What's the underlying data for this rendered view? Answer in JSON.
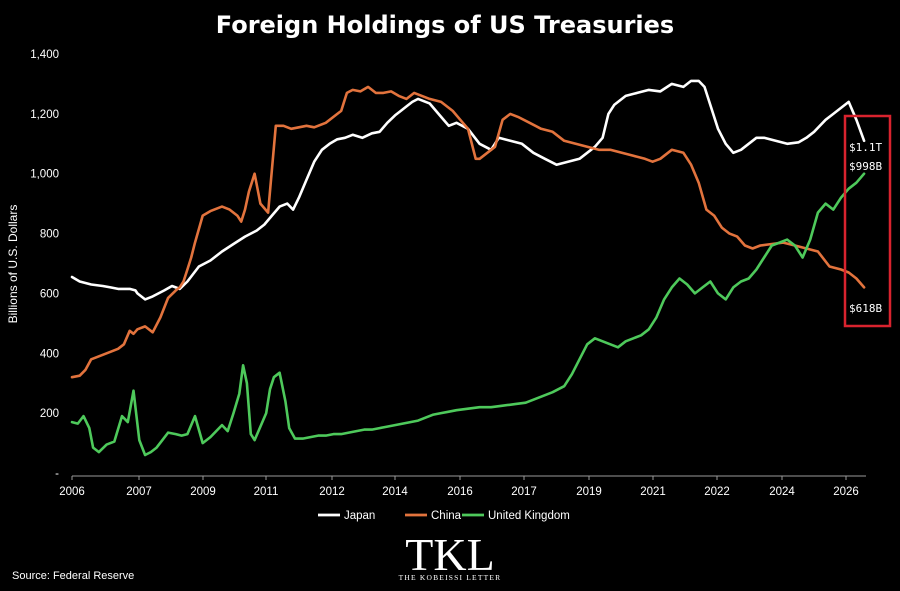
{
  "chart_data": {
    "type": "line",
    "title": "Foreign Holdings of US Treasuries",
    "ylabel": "Billions of U.S. Dollars",
    "xlabel": "",
    "ylim": [
      -10,
      1400
    ],
    "xlim": [
      2006.0,
      2026.65
    ],
    "yticks": [
      1400,
      1200,
      1000,
      800,
      600,
      400,
      200,
      "-"
    ],
    "xticks": [
      "2006",
      "2007",
      "2009",
      "2011",
      "2012",
      "2014",
      "2016",
      "2017",
      "2019",
      "2021",
      "2022",
      "2024",
      "2026"
    ],
    "grid": false,
    "legend_position": "bottom",
    "series": [
      {
        "name": "Japan",
        "color": "#ffffff",
        "x": [
          2006.0,
          2006.2,
          2006.5,
          2006.8,
          2007.0,
          2007.2,
          2007.5,
          2007.65,
          2007.7,
          2007.9,
          2008.1,
          2008.4,
          2008.6,
          2008.8,
          2009.0,
          2009.3,
          2009.6,
          2009.9,
          2010.2,
          2010.5,
          2010.8,
          2011.0,
          2011.2,
          2011.4,
          2011.6,
          2011.75,
          2011.9,
          2012.1,
          2012.3,
          2012.5,
          2012.7,
          2012.9,
          2013.1,
          2013.3,
          2013.55,
          2013.8,
          2014.0,
          2014.2,
          2014.4,
          2014.55,
          2014.7,
          2014.85,
          2015.0,
          2015.3,
          2015.6,
          2015.8,
          2016.0,
          2016.3,
          2016.6,
          2016.9,
          2017.1,
          2017.4,
          2017.7,
          2018.0,
          2018.3,
          2018.6,
          2018.9,
          2019.2,
          2019.4,
          2019.6,
          2019.8,
          2019.95,
          2020.1,
          2020.4,
          2020.7,
          2021.0,
          2021.3,
          2021.6,
          2021.9,
          2022.1,
          2022.3,
          2022.45,
          2022.6,
          2022.8,
          2023.0,
          2023.2,
          2023.4,
          2023.6,
          2023.8,
          2024.0,
          2024.3,
          2024.6,
          2024.9,
          2025.1,
          2025.3,
          2025.6,
          2025.8,
          2026.0,
          2026.2,
          2026.4,
          2026.6
        ],
        "values": [
          655,
          640,
          630,
          625,
          620,
          615,
          615,
          610,
          600,
          580,
          590,
          610,
          625,
          615,
          640,
          690,
          710,
          740,
          765,
          790,
          810,
          830,
          860,
          890,
          900,
          880,
          920,
          980,
          1040,
          1080,
          1100,
          1115,
          1120,
          1130,
          1120,
          1135,
          1140,
          1170,
          1195,
          1210,
          1225,
          1240,
          1250,
          1235,
          1190,
          1160,
          1170,
          1150,
          1100,
          1080,
          1120,
          1110,
          1100,
          1070,
          1050,
          1030,
          1040,
          1050,
          1070,
          1090,
          1120,
          1200,
          1230,
          1260,
          1270,
          1280,
          1275,
          1300,
          1290,
          1310,
          1310,
          1290,
          1230,
          1150,
          1100,
          1070,
          1080,
          1100,
          1120,
          1120,
          1110,
          1100,
          1105,
          1120,
          1140,
          1180,
          1200,
          1220,
          1240,
          1180,
          1110
        ]
      },
      {
        "name": "China",
        "color": "#e2733d",
        "x": [
          2006.0,
          2006.2,
          2006.35,
          2006.5,
          2006.8,
          2007.0,
          2007.2,
          2007.35,
          2007.5,
          2007.55,
          2007.6,
          2007.7,
          2007.9,
          2008.1,
          2008.3,
          2008.5,
          2008.7,
          2008.8,
          2008.9,
          2009.0,
          2009.1,
          2009.2,
          2009.4,
          2009.6,
          2009.9,
          2010.1,
          2010.3,
          2010.4,
          2010.5,
          2010.6,
          2010.75,
          2010.9,
          2011.1,
          2011.3,
          2011.5,
          2011.7,
          2011.9,
          2012.1,
          2012.3,
          2012.6,
          2012.9,
          2013.0,
          2013.15,
          2013.3,
          2013.5,
          2013.7,
          2013.9,
          2014.1,
          2014.3,
          2014.5,
          2014.7,
          2014.9,
          2015.1,
          2015.3,
          2015.6,
          2015.9,
          2016.1,
          2016.3,
          2016.5,
          2016.6,
          2016.8,
          2017.0,
          2017.2,
          2017.4,
          2017.6,
          2017.9,
          2018.2,
          2018.5,
          2018.8,
          2019.1,
          2019.4,
          2019.7,
          2020.0,
          2020.3,
          2020.6,
          2020.9,
          2021.1,
          2021.3,
          2021.6,
          2021.9,
          2022.1,
          2022.3,
          2022.5,
          2022.7,
          2022.9,
          2023.1,
          2023.3,
          2023.5,
          2023.7,
          2023.9,
          2024.2,
          2024.5,
          2024.8,
          2025.1,
          2025.4,
          2025.7,
          2026.0,
          2026.2,
          2026.4,
          2026.6
        ],
        "values": [
          320,
          325,
          345,
          380,
          395,
          405,
          415,
          430,
          475,
          470,
          465,
          480,
          490,
          470,
          520,
          585,
          610,
          620,
          640,
          680,
          720,
          770,
          860,
          875,
          890,
          880,
          860,
          840,
          880,
          940,
          1000,
          900,
          870,
          1160,
          1160,
          1150,
          1155,
          1160,
          1155,
          1170,
          1200,
          1210,
          1270,
          1280,
          1275,
          1290,
          1270,
          1270,
          1275,
          1260,
          1250,
          1270,
          1260,
          1250,
          1240,
          1210,
          1180,
          1150,
          1050,
          1050,
          1070,
          1090,
          1180,
          1200,
          1190,
          1170,
          1150,
          1140,
          1110,
          1100,
          1090,
          1080,
          1080,
          1070,
          1060,
          1050,
          1040,
          1050,
          1080,
          1070,
          1030,
          970,
          880,
          860,
          820,
          800,
          790,
          760,
          750,
          760,
          765,
          770,
          760,
          750,
          740,
          690,
          680,
          670,
          650,
          620
        ]
      },
      {
        "name": "United Kingdom",
        "color": "#4ec95b",
        "x": [
          2006.0,
          2006.15,
          2006.3,
          2006.45,
          2006.55,
          2006.7,
          2006.9,
          2007.1,
          2007.3,
          2007.45,
          2007.6,
          2007.75,
          2007.9,
          2008.05,
          2008.2,
          2008.35,
          2008.5,
          2008.7,
          2008.85,
          2009.0,
          2009.2,
          2009.4,
          2009.6,
          2009.75,
          2009.9,
          2010.05,
          2010.2,
          2010.35,
          2010.45,
          2010.55,
          2010.65,
          2010.75,
          2010.9,
          2011.05,
          2011.15,
          2011.25,
          2011.4,
          2011.55,
          2011.65,
          2011.8,
          2012.0,
          2012.2,
          2012.4,
          2012.6,
          2012.8,
          2013.0,
          2013.2,
          2013.4,
          2013.6,
          2013.8,
          2014.0,
          2014.2,
          2014.4,
          2014.6,
          2014.8,
          2015.0,
          2015.2,
          2015.4,
          2015.6,
          2015.8,
          2016.0,
          2016.3,
          2016.6,
          2016.9,
          2017.2,
          2017.5,
          2017.8,
          2018.0,
          2018.2,
          2018.5,
          2018.8,
          2019.0,
          2019.2,
          2019.4,
          2019.6,
          2019.8,
          2020.0,
          2020.2,
          2020.4,
          2020.6,
          2020.8,
          2021.0,
          2021.2,
          2021.4,
          2021.6,
          2021.8,
          2022.0,
          2022.2,
          2022.4,
          2022.6,
          2022.8,
          2023.0,
          2023.2,
          2023.4,
          2023.6,
          2023.8,
          2024.0,
          2024.2,
          2024.4,
          2024.6,
          2024.8,
          2025.0,
          2025.2,
          2025.4,
          2025.6,
          2025.8,
          2026.0,
          2026.2,
          2026.4,
          2026.6
        ],
        "values": [
          170,
          165,
          190,
          150,
          85,
          70,
          95,
          105,
          190,
          170,
          275,
          110,
          60,
          70,
          85,
          110,
          135,
          130,
          125,
          130,
          190,
          100,
          120,
          140,
          160,
          140,
          200,
          265,
          360,
          300,
          130,
          110,
          155,
          200,
          280,
          320,
          335,
          240,
          150,
          115,
          115,
          120,
          125,
          125,
          130,
          130,
          135,
          140,
          145,
          145,
          150,
          155,
          160,
          165,
          170,
          175,
          185,
          195,
          200,
          205,
          210,
          215,
          220,
          220,
          225,
          230,
          235,
          245,
          255,
          270,
          290,
          330,
          380,
          430,
          450,
          440,
          430,
          420,
          440,
          450,
          460,
          480,
          520,
          580,
          620,
          650,
          630,
          600,
          620,
          640,
          600,
          580,
          620,
          640,
          650,
          680,
          720,
          760,
          770,
          780,
          760,
          720,
          780,
          870,
          900,
          880,
          920,
          950,
          970,
          1000
        ]
      }
    ],
    "annotations": [
      {
        "text": "$1.1T",
        "series": "Japan"
      },
      {
        "text": "$998B",
        "series": "United Kingdom"
      },
      {
        "text": "$618B",
        "series": "China"
      }
    ]
  },
  "source": "Source: Federal Reserve",
  "logo": {
    "big": "TKL",
    "small": "THE KOBEISSI LETTER"
  },
  "highlight_color": "#d9232e"
}
